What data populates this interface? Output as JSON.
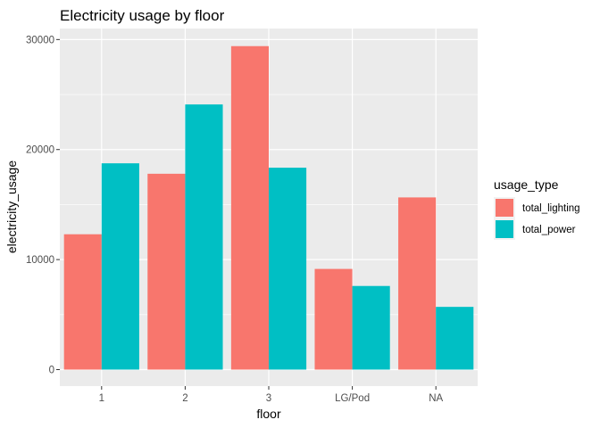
{
  "chart_data": {
    "type": "bar",
    "title": "Electricity usage by floor",
    "xlabel": "floor",
    "ylabel": "electricity_usage",
    "categories": [
      "1",
      "2",
      "3",
      "LG/Pod",
      "NA"
    ],
    "series": [
      {
        "name": "total_lighting",
        "color": "#F8766D",
        "values": [
          12300,
          17800,
          29400,
          9150,
          15650
        ]
      },
      {
        "name": "total_power",
        "color": "#00BFC4",
        "values": [
          18750,
          24100,
          18350,
          7600,
          5700
        ]
      }
    ],
    "ylim": [
      -1500,
      31000
    ],
    "yticks": [
      0,
      10000,
      20000,
      30000
    ],
    "ytick_labels": [
      "0",
      "10000",
      "20000",
      "30000"
    ],
    "grid": true,
    "legend": {
      "title": "usage_type",
      "position": "right"
    },
    "panel_background": "#EBEBEB",
    "grid_color": "#FFFFFF"
  }
}
